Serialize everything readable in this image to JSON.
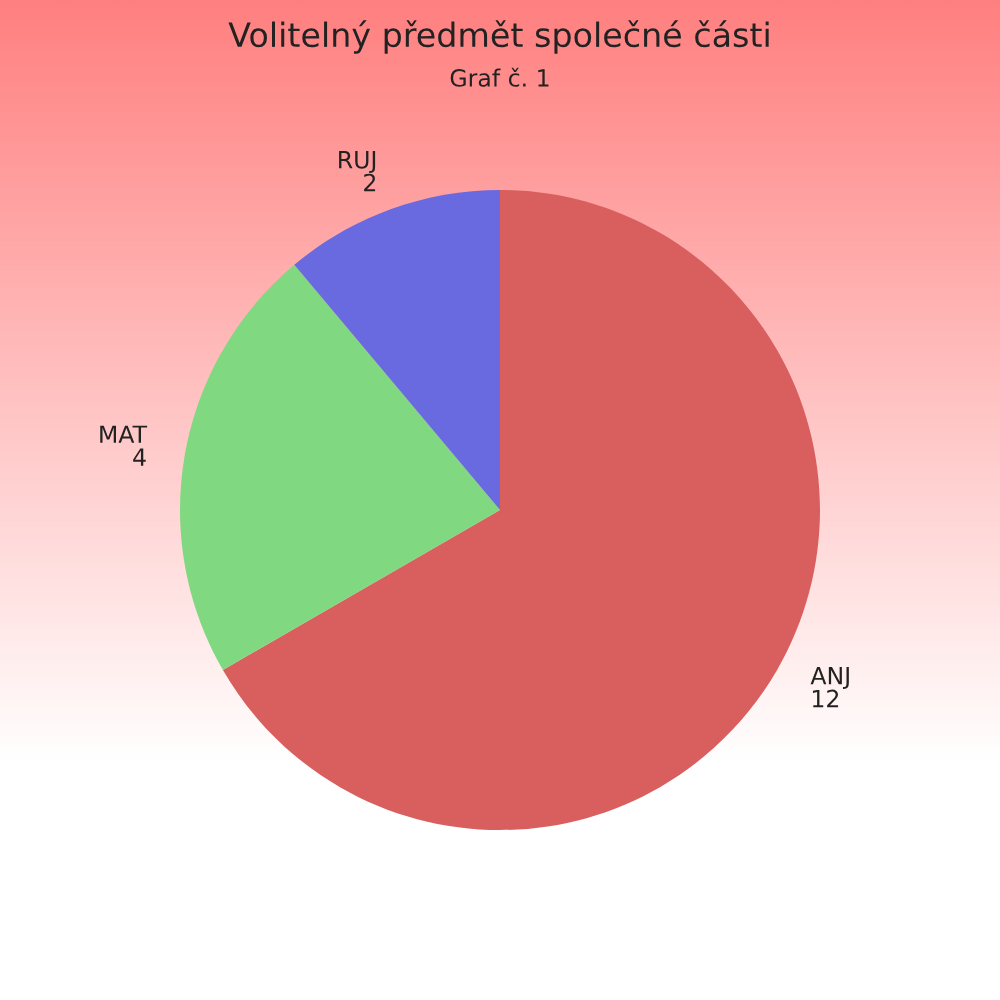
{
  "chart_data": {
    "type": "pie",
    "title": "Volitelný předmět společné části",
    "subtitle": "Graf č. 1",
    "categories": [
      "ANJ",
      "MAT",
      "RUJ"
    ],
    "values": [
      12,
      4,
      2
    ],
    "colors": [
      "#d95f5f",
      "#80d880",
      "#6a6ae0"
    ],
    "data_labels": true
  }
}
